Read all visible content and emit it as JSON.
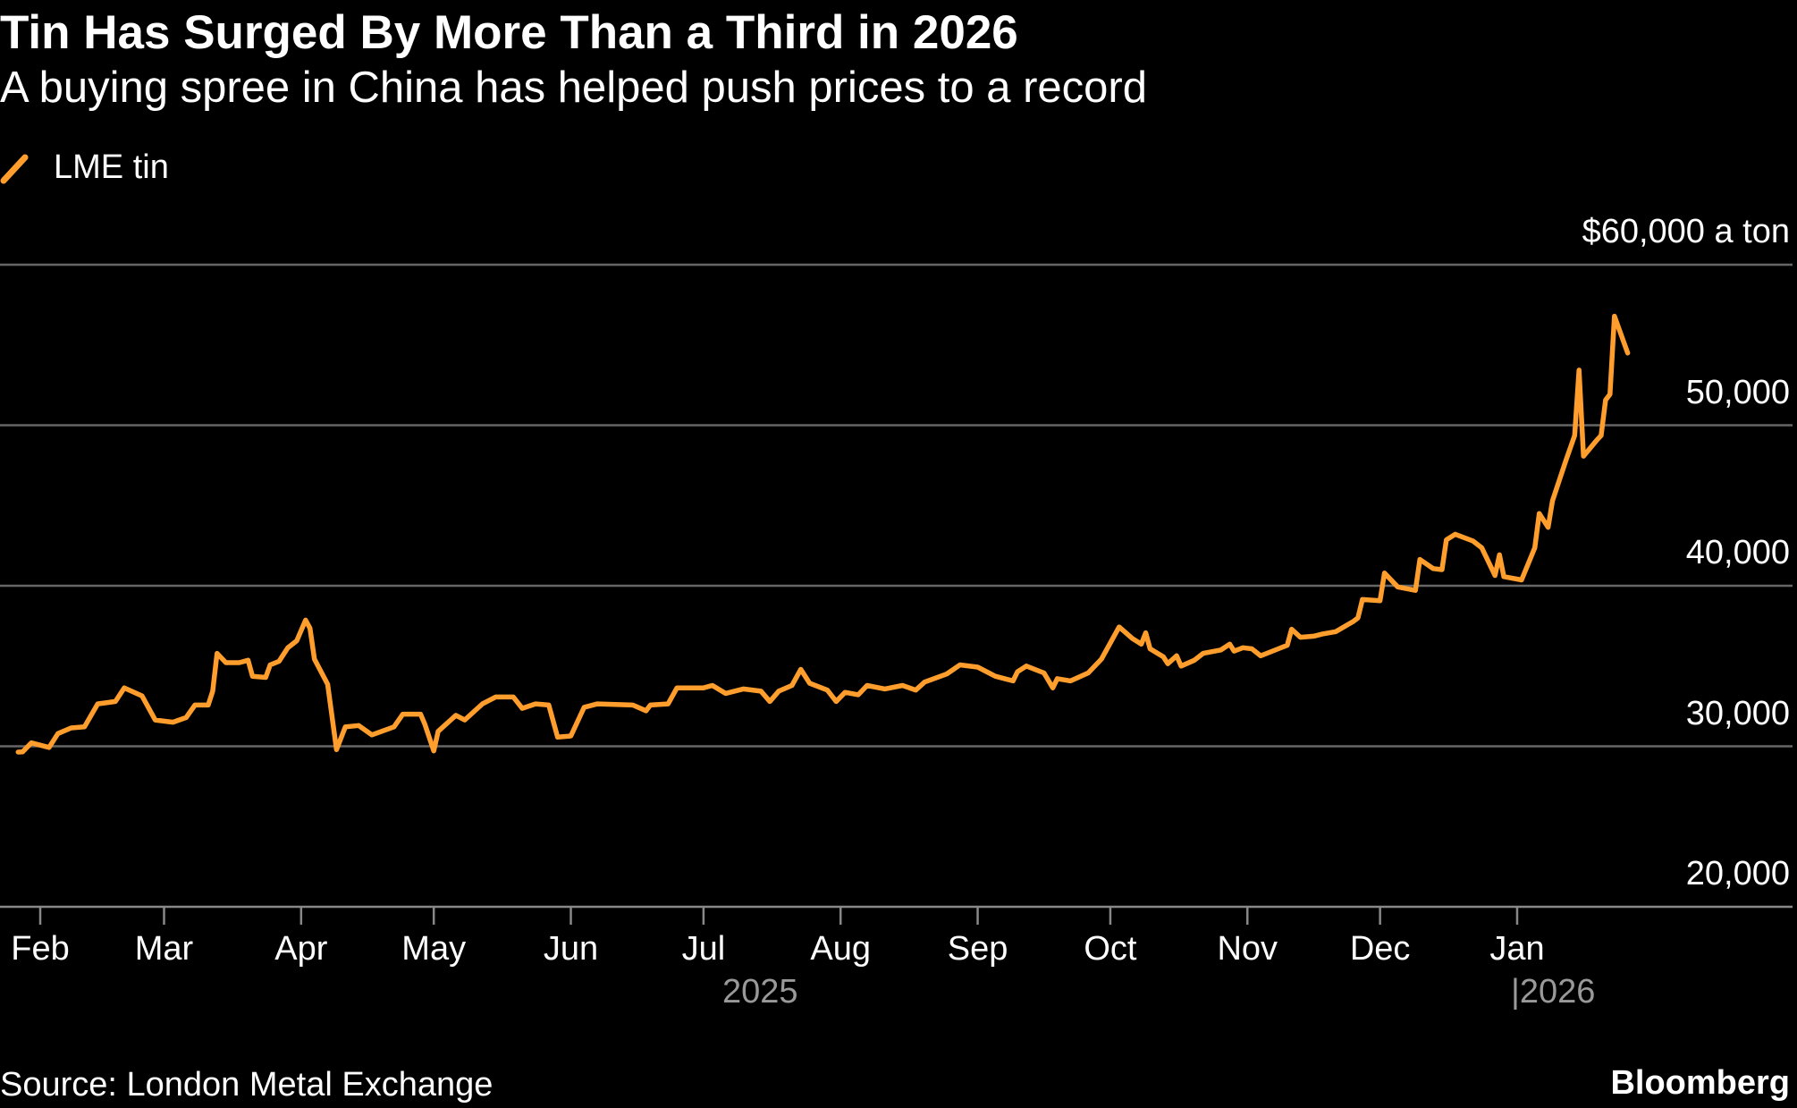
{
  "chart_data": {
    "type": "line",
    "title": "Tin Has Surged By More Than a Third in 2026",
    "subtitle": "A buying spree in China has helped push prices to a record",
    "legend": "top-left",
    "unit_label": "$60,000 a ton",
    "ylim": [
      20000,
      60000
    ],
    "y_ticks": [
      60000,
      50000,
      40000,
      30000,
      20000
    ],
    "y_tick_labels": [
      "$60,000 a ton",
      "50,000",
      "40,000",
      "30,000",
      "20,000"
    ],
    "x_ticks": [
      "2025-02-01",
      "2025-03-01",
      "2025-04-01",
      "2025-05-01",
      "2025-06-01",
      "2025-07-01",
      "2025-08-01",
      "2025-09-01",
      "2025-10-01",
      "2025-11-01",
      "2025-12-01",
      "2026-01-01"
    ],
    "x_tick_labels": [
      "Feb",
      "Mar",
      "Apr",
      "May",
      "Jun",
      "Jul",
      "Aug",
      "Sep",
      "Oct",
      "Nov",
      "Dec",
      "Jan"
    ],
    "year_labels": [
      "2025",
      "|2026"
    ],
    "grid": true,
    "series": [
      {
        "name": "LME tin",
        "color": "#ff9e2c",
        "points": [
          [
            "2025-01-27",
            29640
          ],
          [
            "2025-01-28",
            29650
          ],
          [
            "2025-01-30",
            30210
          ],
          [
            "2025-02-03",
            29930
          ],
          [
            "2025-02-05",
            30790
          ],
          [
            "2025-02-08",
            31140
          ],
          [
            "2025-02-11",
            31210
          ],
          [
            "2025-02-14",
            32640
          ],
          [
            "2025-02-18",
            32790
          ],
          [
            "2025-02-20",
            33640
          ],
          [
            "2025-02-24",
            33140
          ],
          [
            "2025-02-27",
            31640
          ],
          [
            "2025-03-03",
            31500
          ],
          [
            "2025-03-06",
            31790
          ],
          [
            "2025-03-08",
            32570
          ],
          [
            "2025-03-11",
            32570
          ],
          [
            "2025-03-12",
            33430
          ],
          [
            "2025-03-13",
            35790
          ],
          [
            "2025-03-15",
            35210
          ],
          [
            "2025-03-18",
            35210
          ],
          [
            "2025-03-20",
            35360
          ],
          [
            "2025-03-21",
            34360
          ],
          [
            "2025-03-24",
            34290
          ],
          [
            "2025-03-25",
            35070
          ],
          [
            "2025-03-27",
            35290
          ],
          [
            "2025-03-29",
            36140
          ],
          [
            "2025-03-31",
            36570
          ],
          [
            "2025-04-02",
            37860
          ],
          [
            "2025-04-03",
            37360
          ],
          [
            "2025-04-04",
            35430
          ],
          [
            "2025-04-07",
            33860
          ],
          [
            "2025-04-09",
            29790
          ],
          [
            "2025-04-11",
            31210
          ],
          [
            "2025-04-14",
            31290
          ],
          [
            "2025-04-17",
            30710
          ],
          [
            "2025-04-22",
            31210
          ],
          [
            "2025-04-24",
            32000
          ],
          [
            "2025-04-28",
            32000
          ],
          [
            "2025-04-29",
            31360
          ],
          [
            "2025-05-01",
            29710
          ],
          [
            "2025-05-02",
            30930
          ],
          [
            "2025-05-06",
            31930
          ],
          [
            "2025-05-08",
            31640
          ],
          [
            "2025-05-12",
            32640
          ],
          [
            "2025-05-15",
            33070
          ],
          [
            "2025-05-19",
            33070
          ],
          [
            "2025-05-21",
            32360
          ],
          [
            "2025-05-24",
            32640
          ],
          [
            "2025-05-27",
            32570
          ],
          [
            "2025-05-29",
            30570
          ],
          [
            "2025-06-01",
            30640
          ],
          [
            "2025-06-04",
            32430
          ],
          [
            "2025-06-07",
            32640
          ],
          [
            "2025-06-15",
            32570
          ],
          [
            "2025-06-18",
            32210
          ],
          [
            "2025-06-19",
            32570
          ],
          [
            "2025-06-23",
            32640
          ],
          [
            "2025-06-25",
            33640
          ],
          [
            "2025-07-01",
            33640
          ],
          [
            "2025-07-03",
            33790
          ],
          [
            "2025-07-06",
            33290
          ],
          [
            "2025-07-10",
            33570
          ],
          [
            "2025-07-14",
            33430
          ],
          [
            "2025-07-16",
            32790
          ],
          [
            "2025-07-18",
            33430
          ],
          [
            "2025-07-21",
            33790
          ],
          [
            "2025-07-23",
            34790
          ],
          [
            "2025-07-25",
            33930
          ],
          [
            "2025-07-29",
            33500
          ],
          [
            "2025-07-31",
            32790
          ],
          [
            "2025-08-02",
            33360
          ],
          [
            "2025-08-05",
            33210
          ],
          [
            "2025-08-07",
            33790
          ],
          [
            "2025-08-11",
            33570
          ],
          [
            "2025-08-15",
            33790
          ],
          [
            "2025-08-18",
            33500
          ],
          [
            "2025-08-20",
            34000
          ],
          [
            "2025-08-25",
            34500
          ],
          [
            "2025-08-28",
            35070
          ],
          [
            "2025-09-01",
            34930
          ],
          [
            "2025-09-05",
            34360
          ],
          [
            "2025-09-09",
            34070
          ],
          [
            "2025-09-10",
            34640
          ],
          [
            "2025-09-12",
            35000
          ],
          [
            "2025-09-16",
            34570
          ],
          [
            "2025-09-18",
            33640
          ],
          [
            "2025-09-19",
            34210
          ],
          [
            "2025-09-22",
            34070
          ],
          [
            "2025-09-26",
            34570
          ],
          [
            "2025-09-29",
            35430
          ],
          [
            "2025-10-03",
            37430
          ],
          [
            "2025-10-06",
            36710
          ],
          [
            "2025-10-08",
            36360
          ],
          [
            "2025-10-09",
            37070
          ],
          [
            "2025-10-10",
            36070
          ],
          [
            "2025-10-13",
            35570
          ],
          [
            "2025-10-14",
            35140
          ],
          [
            "2025-10-16",
            35640
          ],
          [
            "2025-10-17",
            35000
          ],
          [
            "2025-10-20",
            35360
          ],
          [
            "2025-10-22",
            35790
          ],
          [
            "2025-10-26",
            36000
          ],
          [
            "2025-10-28",
            36360
          ],
          [
            "2025-10-29",
            35930
          ],
          [
            "2025-10-31",
            36140
          ],
          [
            "2025-11-02",
            36070
          ],
          [
            "2025-11-04",
            35640
          ],
          [
            "2025-11-08",
            36070
          ],
          [
            "2025-11-10",
            36290
          ],
          [
            "2025-11-11",
            37290
          ],
          [
            "2025-11-13",
            36790
          ],
          [
            "2025-11-16",
            36860
          ],
          [
            "2025-11-18",
            37000
          ],
          [
            "2025-11-21",
            37140
          ],
          [
            "2025-11-25",
            37790
          ],
          [
            "2025-11-26",
            38000
          ],
          [
            "2025-11-27",
            39140
          ],
          [
            "2025-12-01",
            39070
          ],
          [
            "2025-12-02",
            40790
          ],
          [
            "2025-12-05",
            39930
          ],
          [
            "2025-12-09",
            39710
          ],
          [
            "2025-12-10",
            41640
          ],
          [
            "2025-12-13",
            41070
          ],
          [
            "2025-12-15",
            41000
          ],
          [
            "2025-12-16",
            42860
          ],
          [
            "2025-12-18",
            43210
          ],
          [
            "2025-12-22",
            42790
          ],
          [
            "2025-12-24",
            42360
          ],
          [
            "2025-12-27",
            40640
          ],
          [
            "2025-12-28",
            41930
          ],
          [
            "2025-12-29",
            40570
          ],
          [
            "2026-01-02",
            40360
          ],
          [
            "2026-01-05",
            42360
          ],
          [
            "2026-01-06",
            44500
          ],
          [
            "2026-01-08",
            43640
          ],
          [
            "2026-01-09",
            45290
          ],
          [
            "2026-01-12",
            47790
          ],
          [
            "2026-01-14",
            49360
          ],
          [
            "2026-01-15",
            53430
          ],
          [
            "2026-01-16",
            48070
          ],
          [
            "2026-01-19",
            49070
          ],
          [
            "2026-01-20",
            49360
          ],
          [
            "2026-01-21",
            51570
          ],
          [
            "2026-01-22",
            51930
          ],
          [
            "2026-01-23",
            56790
          ],
          [
            "2026-01-26",
            54500
          ]
        ]
      }
    ]
  },
  "footer": {
    "source": "Source: London Metal Exchange",
    "brand": "Bloomberg"
  }
}
